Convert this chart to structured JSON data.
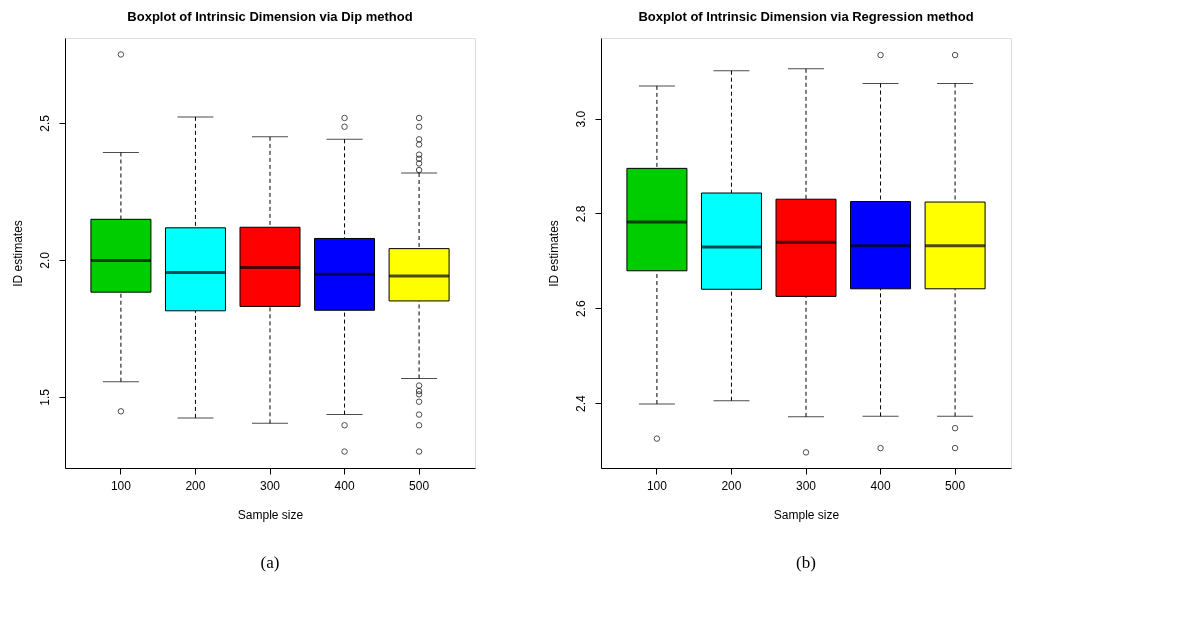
{
  "chart_data": [
    {
      "type": "box",
      "title": "Boxplot of Intrinsic Dimension via Dip method",
      "xlabel": "Sample size",
      "ylabel": "ID estimates",
      "annotations": [
        "(a)"
      ],
      "categories": [
        "100",
        "200",
        "300",
        "400",
        "500"
      ],
      "colors": [
        "#00cd00",
        "#00ffff",
        "#ff0000",
        "#0000ff",
        "#ffff00"
      ],
      "boxes": [
        {
          "low": 1.555,
          "q1": 1.882,
          "median": 1.998,
          "q3": 2.148,
          "high": 2.392,
          "outliers": [
            2.75,
            1.447
          ]
        },
        {
          "low": 1.423,
          "q1": 1.814,
          "median": 1.954,
          "q3": 2.117,
          "high": 2.522
        },
        {
          "low": 1.403,
          "q1": 1.83,
          "median": 1.972,
          "q3": 2.119,
          "high": 2.449
        },
        {
          "low": 1.435,
          "q1": 1.816,
          "median": 1.947,
          "q3": 2.078,
          "high": 2.44,
          "outliers": [
            2.518,
            2.486,
            1.396,
            1.3
          ]
        },
        {
          "low": 1.567,
          "q1": 1.85,
          "median": 1.941,
          "q3": 2.041,
          "high": 2.317,
          "outliers": [
            2.518,
            2.486,
            2.44,
            2.421,
            2.384,
            2.369,
            2.352,
            2.328,
            1.541,
            1.521,
            1.509,
            1.482,
            1.435,
            1.396,
            1.3
          ]
        }
      ],
      "ylim": [
        1.24,
        2.81
      ],
      "yticks": [
        1.5,
        {
          "value": 2,
          "label": "2.0"
        },
        2.5
      ]
    },
    {
      "type": "box",
      "title": "Boxplot of Intrinsic Dimension via Regression method",
      "xlabel": "Sample size",
      "ylabel": "ID estimates",
      "annotations": [
        "(b)"
      ],
      "categories": [
        "100",
        "200",
        "300",
        "400",
        "500"
      ],
      "colors": [
        "#00cd00",
        "#00ffff",
        "#ff0000",
        "#0000ff",
        "#ffff00"
      ],
      "boxes": [
        {
          "low": 2.398,
          "q1": 2.679,
          "median": 2.782,
          "q3": 2.895,
          "high": 3.069,
          "outliers": [
            2.325
          ]
        },
        {
          "low": 2.405,
          "q1": 2.64,
          "median": 2.729,
          "q3": 2.843,
          "high": 3.101
        },
        {
          "low": 2.371,
          "q1": 2.625,
          "median": 2.739,
          "q3": 2.83,
          "high": 3.105,
          "outliers": [
            2.296
          ]
        },
        {
          "low": 2.372,
          "q1": 2.641,
          "median": 2.732,
          "q3": 2.825,
          "high": 3.074,
          "outliers": [
            3.134,
            2.305
          ]
        },
        {
          "low": 2.372,
          "q1": 2.641,
          "median": 2.732,
          "q3": 2.824,
          "high": 3.074,
          "outliers": [
            3.134,
            2.347,
            2.305
          ]
        }
      ],
      "ylim": [
        2.263,
        3.17
      ],
      "yticks": [
        2.4,
        2.6,
        2.8,
        {
          "value": 3,
          "label": "3.0"
        }
      ]
    }
  ]
}
